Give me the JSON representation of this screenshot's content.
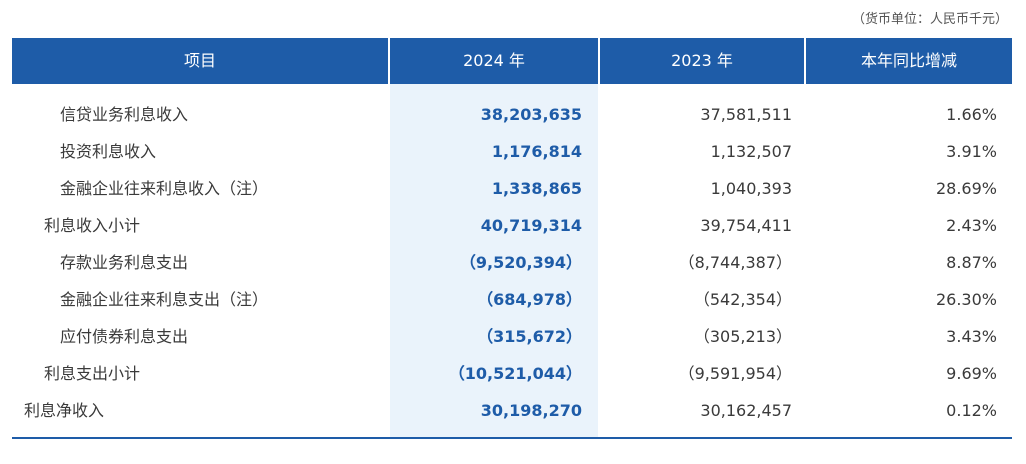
{
  "unit_note": "（货币单位：人民币千元）",
  "headers": {
    "item": "项目",
    "y2024": "2024 年",
    "y2023": "2023 年",
    "yoy": "本年同比增减"
  },
  "rows": [
    {
      "item": "信贷业务利息收入",
      "y2024": "38,203,635",
      "y2023": "37,581,511",
      "yoy": "1.66%"
    },
    {
      "item": "投资利息收入",
      "y2024": "1,176,814",
      "y2023": "1,132,507",
      "yoy": "3.91%"
    },
    {
      "item": "金融企业往来利息收入（注）",
      "y2024": "1,338,865",
      "y2023": "1,040,393",
      "yoy": "28.69%"
    },
    {
      "item": "利息收入小计",
      "y2024": "40,719,314",
      "y2023": "39,754,411",
      "yoy": "2.43%"
    },
    {
      "item": "存款业务利息支出",
      "y2024": "（9,520,394）",
      "y2023": "（8,744,387）",
      "yoy": "8.87%"
    },
    {
      "item": "金融企业往来利息支出（注）",
      "y2024": "（684,978）",
      "y2023": "（542,354）",
      "yoy": "26.30%"
    },
    {
      "item": "应付债券利息支出",
      "y2024": "（315,672）",
      "y2023": "（305,213）",
      "yoy": "3.43%"
    },
    {
      "item": "利息支出小计",
      "y2024": "（10,521,044）",
      "y2023": "（9,591,954）",
      "yoy": "9.69%"
    },
    {
      "item": "利息净收入",
      "y2024": "30,198,270",
      "y2023": "30,162,457",
      "yoy": "0.12%"
    }
  ]
}
